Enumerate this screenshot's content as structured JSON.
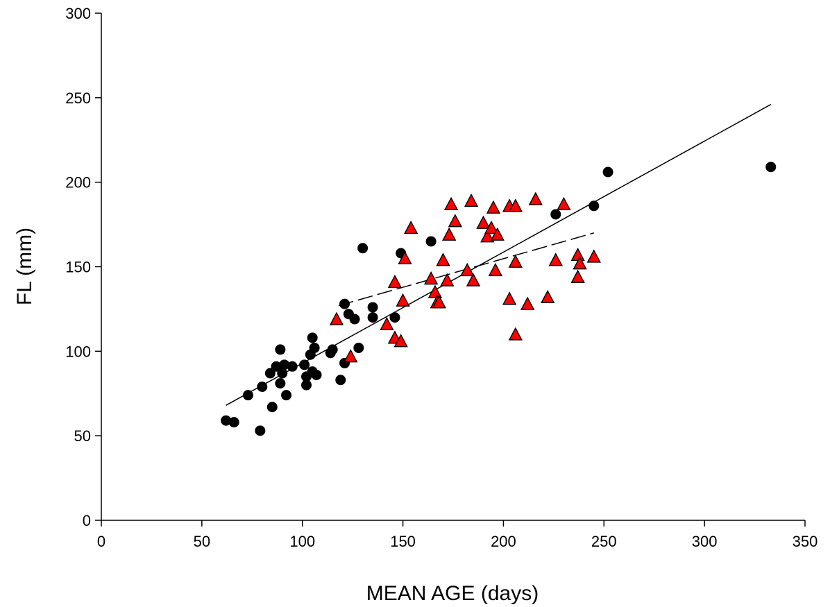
{
  "chart_data": {
    "type": "scatter",
    "xlabel": "MEAN AGE (days)",
    "ylabel": "FL (mm)",
    "xlim": [
      0,
      350
    ],
    "ylim": [
      0,
      300
    ],
    "xticks": [
      "0",
      "50",
      "100",
      "150",
      "200",
      "250",
      "300",
      "350"
    ],
    "yticks": [
      "0",
      "50",
      "100",
      "150",
      "200",
      "250",
      "300"
    ],
    "grid": false,
    "series": [
      {
        "marker": "circle",
        "color": "#000000",
        "points": [
          [
            62,
            59
          ],
          [
            66,
            58
          ],
          [
            73,
            74
          ],
          [
            79,
            53
          ],
          [
            80,
            79
          ],
          [
            84,
            87
          ],
          [
            85,
            67
          ],
          [
            87,
            91
          ],
          [
            89,
            101
          ],
          [
            89,
            81
          ],
          [
            90,
            87
          ],
          [
            91,
            92
          ],
          [
            92,
            74
          ],
          [
            95,
            91
          ],
          [
            101,
            92
          ],
          [
            102,
            85
          ],
          [
            102,
            80
          ],
          [
            104,
            98
          ],
          [
            105,
            108
          ],
          [
            105,
            88
          ],
          [
            106,
            102
          ],
          [
            107,
            86
          ],
          [
            114,
            99
          ],
          [
            115,
            101
          ],
          [
            119,
            83
          ],
          [
            121,
            93
          ],
          [
            121,
            128
          ],
          [
            123,
            122
          ],
          [
            126,
            119
          ],
          [
            128,
            102
          ],
          [
            130,
            161
          ],
          [
            135,
            120
          ],
          [
            135,
            126
          ],
          [
            146,
            120
          ],
          [
            149,
            158
          ],
          [
            164,
            165
          ],
          [
            226,
            181
          ],
          [
            245,
            186
          ],
          [
            252,
            206
          ],
          [
            333,
            209
          ]
        ]
      },
      {
        "marker": "triangle",
        "color": "#ff0000",
        "points": [
          [
            117,
            119
          ],
          [
            124,
            97
          ],
          [
            142,
            116
          ],
          [
            146,
            141
          ],
          [
            146,
            108
          ],
          [
            149,
            106
          ],
          [
            150,
            130
          ],
          [
            151,
            155
          ],
          [
            154,
            173
          ],
          [
            164,
            143
          ],
          [
            166,
            135
          ],
          [
            167,
            129
          ],
          [
            168,
            129
          ],
          [
            170,
            154
          ],
          [
            172,
            142
          ],
          [
            173,
            169
          ],
          [
            174,
            187
          ],
          [
            176,
            177
          ],
          [
            182,
            148
          ],
          [
            184,
            189
          ],
          [
            185,
            142
          ],
          [
            190,
            176
          ],
          [
            192,
            168
          ],
          [
            194,
            173
          ],
          [
            195,
            185
          ],
          [
            196,
            148
          ],
          [
            197,
            169
          ],
          [
            203,
            131
          ],
          [
            203,
            186
          ],
          [
            206,
            110
          ],
          [
            206,
            153
          ],
          [
            206,
            186
          ],
          [
            212,
            128
          ],
          [
            216,
            190
          ],
          [
            222,
            132
          ],
          [
            226,
            154
          ],
          [
            230,
            187
          ],
          [
            237,
            157
          ],
          [
            237,
            144
          ],
          [
            238,
            152
          ],
          [
            245,
            156
          ]
        ]
      }
    ],
    "lines": [
      {
        "style": "solid",
        "color": "#000000",
        "points": [
          [
            62,
            68
          ],
          [
            333,
            246
          ]
        ]
      },
      {
        "style": "dashed",
        "color": "#000000",
        "points": [
          [
            118,
            127
          ],
          [
            245,
            170
          ]
        ]
      }
    ]
  }
}
